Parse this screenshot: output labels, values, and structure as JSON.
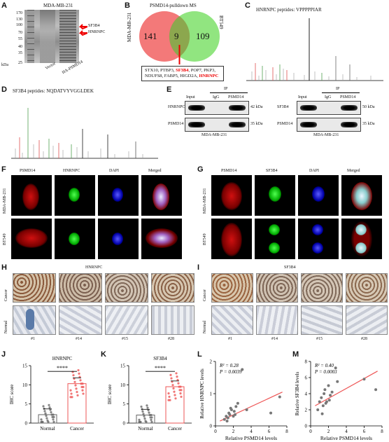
{
  "panels": {
    "A": {
      "letter": "A",
      "title": "MDA-MB-231",
      "kda_label": "kDa",
      "markers": [
        "170",
        "130",
        "100",
        "70",
        "55",
        "40",
        "35",
        "25"
      ],
      "arrow_labels": [
        "SF3B4",
        "HNRNPC"
      ],
      "lanes": [
        "Vector",
        "HA-PSMD14"
      ]
    },
    "B": {
      "letter": "B",
      "title": "PSMD14-pulldown MS",
      "left_label": "MDA-MB-231",
      "right_label": "BT549",
      "left_count": "141",
      "overlap_count": "9",
      "right_count": "109",
      "genes_line1_a": "STX10, PTBP3, ",
      "genes_line1_hl": "SF3B4",
      "genes_line1_b": ", POP7, PKP3,",
      "genes_line2_a": "NDUFS8, FABP5, HIGD2A, ",
      "genes_line2_hl": "HNRNPC"
    },
    "C": {
      "letter": "C",
      "title": "HNRNPC  peptides: VPPPPPIAR"
    },
    "D": {
      "letter": "D",
      "title": "SF3B4  peptides: NQDATVYVGGLDEK"
    },
    "E": {
      "letter": "E",
      "ip": "IP",
      "cols": [
        "Input",
        "IgG",
        "PSMD14"
      ],
      "left_rows": [
        "HNRNPC",
        "PSMD14"
      ],
      "left_kda": [
        "42 kDa",
        "35 kDa"
      ],
      "left_cell": "MDA-MB-231",
      "right_rows": [
        "SF3B4",
        "PSMD14"
      ],
      "right_kda": [
        "50 kDa",
        "35 kDa"
      ],
      "right_cell": "MDA-MB-231"
    },
    "F": {
      "letter": "F",
      "cols": [
        "PSMD14",
        "HNRNPC",
        "DAPI",
        "Merged"
      ],
      "rows": [
        "MDA-MB-231",
        "BT549"
      ]
    },
    "G": {
      "letter": "G",
      "cols": [
        "PSMD14",
        "SF3B4",
        "DAPI",
        "Merged"
      ],
      "rows": [
        "MDA-MB-231",
        "BT549"
      ]
    },
    "H": {
      "letter": "H",
      "title": "HNRNPC",
      "rows": [
        "Cancer",
        "Normal"
      ],
      "cases": [
        "#1",
        "#14",
        "#15",
        "#28"
      ]
    },
    "I": {
      "letter": "I",
      "title": "SF3B4",
      "rows": [
        "Cancer",
        "Normal"
      ],
      "cases": [
        "#1",
        "#14",
        "#15",
        "#28"
      ]
    },
    "J": {
      "letter": "J",
      "title": "HNRNPC",
      "ylabel": "IHC score",
      "sig": "****",
      "groups": [
        "Normal",
        "Cancer"
      ],
      "yticks": [
        "0",
        "5",
        "10",
        "15"
      ]
    },
    "K": {
      "letter": "K",
      "title": "SF3B4",
      "ylabel": "IHC score",
      "sig": "****",
      "groups": [
        "Normal",
        "Cancer"
      ],
      "yticks": [
        "0",
        "5",
        "10",
        "15"
      ]
    },
    "L": {
      "letter": "L",
      "r2": "R² = 0.28",
      "p": "P = 0.0039",
      "xlabel": "Relative PSMD14 levels",
      "ylabel": "Relative HNRNPC levels",
      "xticks": [
        "0",
        "2",
        "4",
        "6",
        "8"
      ],
      "yticks": [
        "0",
        "1",
        "2"
      ]
    },
    "M": {
      "letter": "M",
      "r2": "R² = 0.40",
      "p": "P = 0.0003",
      "xlabel": "Relative PSMD14 levels",
      "ylabel": "Relative SF3B4 levels",
      "xticks": [
        "0",
        "2",
        "4",
        "6",
        "8"
      ],
      "yticks": [
        "0",
        "2",
        "4",
        "6",
        "8"
      ]
    }
  },
  "chart_data": [
    {
      "type": "bar",
      "panel": "J",
      "categories": [
        "Normal",
        "Cancer"
      ],
      "values": [
        2.2,
        10.3
      ],
      "ylim": [
        0,
        15
      ],
      "ylabel": "IHC score",
      "title": "HNRNPC"
    },
    {
      "type": "bar",
      "panel": "K",
      "categories": [
        "Normal",
        "Cancer"
      ],
      "values": [
        2.1,
        9.5
      ],
      "ylim": [
        0,
        15
      ],
      "ylabel": "IHC score",
      "title": "SF3B4"
    },
    {
      "type": "scatter",
      "panel": "L",
      "xlabel": "Relative PSMD14 levels",
      "ylabel": "Relative HNRNPC levels",
      "xlim": [
        0,
        8
      ],
      "ylim": [
        0,
        2
      ],
      "x": [
        1.0,
        1.2,
        1.4,
        1.5,
        1.6,
        1.8,
        2.0,
        2.1,
        2.3,
        2.5,
        3.0,
        3.5,
        6.2,
        7.2,
        1.3,
        1.7,
        2.2
      ],
      "y": [
        0.2,
        0.3,
        0.25,
        0.4,
        0.35,
        0.5,
        0.3,
        0.45,
        0.6,
        0.7,
        1.75,
        0.5,
        0.4,
        0.9,
        0.15,
        0.55,
        0.35
      ],
      "fit": {
        "x": [
          0.5,
          7.5
        ],
        "y": [
          0.15,
          1.05
        ]
      }
    },
    {
      "type": "scatter",
      "panel": "M",
      "xlabel": "Relative PSMD14 levels",
      "ylabel": "Relative SF3B4 levels",
      "xlim": [
        0,
        8
      ],
      "ylim": [
        0,
        8
      ],
      "x": [
        0.8,
        1.0,
        1.2,
        1.4,
        1.5,
        1.6,
        1.8,
        2.0,
        2.2,
        2.4,
        2.8,
        3.0,
        1.3,
        1.7,
        2.1,
        6.0,
        7.3
      ],
      "y": [
        2.0,
        3.0,
        3.5,
        2.5,
        4.0,
        4.5,
        3.0,
        5.0,
        3.8,
        4.2,
        7.2,
        5.5,
        1.5,
        2.8,
        3.2,
        5.8,
        4.5
      ],
      "fit": {
        "x": [
          0.5,
          7.5
        ],
        "y": [
          2.5,
          6.8
        ]
      }
    }
  ]
}
